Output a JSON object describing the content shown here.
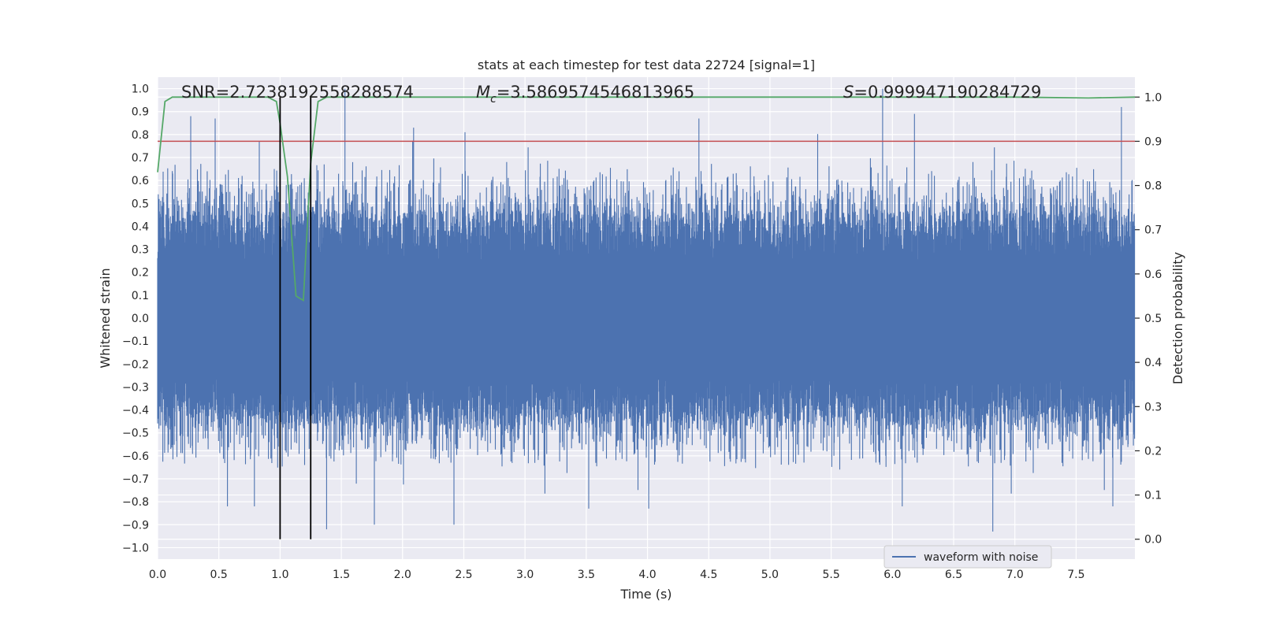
{
  "chart_data": {
    "type": "line",
    "title": "stats at each timestep for test data 22724 [signal=1]",
    "xlabel": "Time (s)",
    "ylabel": "Whitened strain",
    "y2label": "Detection probability",
    "xlim": [
      0.0,
      7.98
    ],
    "ylim": [
      -1.05,
      1.05
    ],
    "y2lim": [
      -0.045,
      1.045
    ],
    "xticks": [
      "0.0",
      "0.5",
      "1.0",
      "1.5",
      "2.0",
      "2.5",
      "3.0",
      "3.5",
      "4.0",
      "4.5",
      "5.0",
      "5.5",
      "6.0",
      "6.5",
      "7.0",
      "7.5"
    ],
    "xtick_values": [
      0,
      0.5,
      1.0,
      1.5,
      2.0,
      2.5,
      3.0,
      3.5,
      4.0,
      4.5,
      5.0,
      5.5,
      6.0,
      6.5,
      7.0,
      7.5
    ],
    "yticks": [
      "−1.0",
      "−0.9",
      "−0.8",
      "−0.7",
      "−0.6",
      "−0.5",
      "−0.4",
      "−0.3",
      "−0.2",
      "−0.1",
      "0.0",
      "0.1",
      "0.2",
      "0.3",
      "0.4",
      "0.5",
      "0.6",
      "0.7",
      "0.8",
      "0.9",
      "1.0"
    ],
    "ytick_values": [
      -1.0,
      -0.9,
      -0.8,
      -0.7,
      -0.6,
      -0.5,
      -0.4,
      -0.3,
      -0.2,
      -0.1,
      0.0,
      0.1,
      0.2,
      0.3,
      0.4,
      0.5,
      0.6,
      0.7,
      0.8,
      0.9,
      1.0
    ],
    "y2ticks": [
      "0.0",
      "0.1",
      "0.2",
      "0.3",
      "0.4",
      "0.5",
      "0.6",
      "0.7",
      "0.8",
      "0.9",
      "1.0"
    ],
    "y2tick_values": [
      0.0,
      0.1,
      0.2,
      0.3,
      0.4,
      0.5,
      0.6,
      0.7,
      0.8,
      0.9,
      1.0
    ],
    "grid": true,
    "legend_position": "bottom-right",
    "series": [
      {
        "name": "waveform with noise",
        "axis": "left",
        "color": "#4c72b0",
        "peaks_positive": [
          [
            0.27,
            0.88
          ],
          [
            0.47,
            0.87
          ],
          [
            0.83,
            0.77
          ],
          [
            1.53,
            1.0
          ],
          [
            2.09,
            0.83
          ],
          [
            2.51,
            0.81
          ],
          [
            4.42,
            0.87
          ],
          [
            5.92,
            1.0
          ],
          [
            6.18,
            0.89
          ],
          [
            7.87,
            0.92
          ]
        ],
        "peaks_negative": [
          [
            0.57,
            -0.82
          ],
          [
            0.79,
            -0.82
          ],
          [
            1.38,
            -0.92
          ],
          [
            1.77,
            -0.9
          ],
          [
            2.42,
            -0.9
          ],
          [
            3.52,
            -0.83
          ],
          [
            4.01,
            -0.83
          ],
          [
            6.08,
            -0.82
          ],
          [
            6.82,
            -0.93
          ],
          [
            7.8,
            -0.82
          ]
        ]
      },
      {
        "name": "detection probability",
        "axis": "right",
        "color": "#55a868",
        "x": [
          0.0,
          0.06,
          0.12,
          0.5,
          0.9,
          0.97,
          1.0,
          1.06,
          1.13,
          1.19,
          1.25,
          1.31,
          1.38,
          1.5,
          2.0,
          4.0,
          6.0,
          7.0,
          7.6,
          7.98
        ],
        "values": [
          0.83,
          0.99,
          1.0,
          1.0,
          1.0,
          0.99,
          0.94,
          0.82,
          0.55,
          0.54,
          0.85,
          0.99,
          1.0,
          1.0,
          1.0,
          1.0,
          1.0,
          1.0,
          0.998,
          1.0
        ]
      }
    ],
    "threshold": {
      "axis": "right",
      "value": 0.9,
      "color": "#c44e52"
    },
    "vlines": [
      {
        "x": 1.0,
        "color": "#000000"
      },
      {
        "x": 1.25,
        "color": "#000000"
      }
    ],
    "annotations": {
      "snr": "SNR=2.7238192558288574",
      "mc_symbol": "M",
      "mc_subscript": "c",
      "mc_value": "=3.5869574546813965",
      "s_symbol": "S",
      "s_value": "=0.999947190284729"
    }
  }
}
